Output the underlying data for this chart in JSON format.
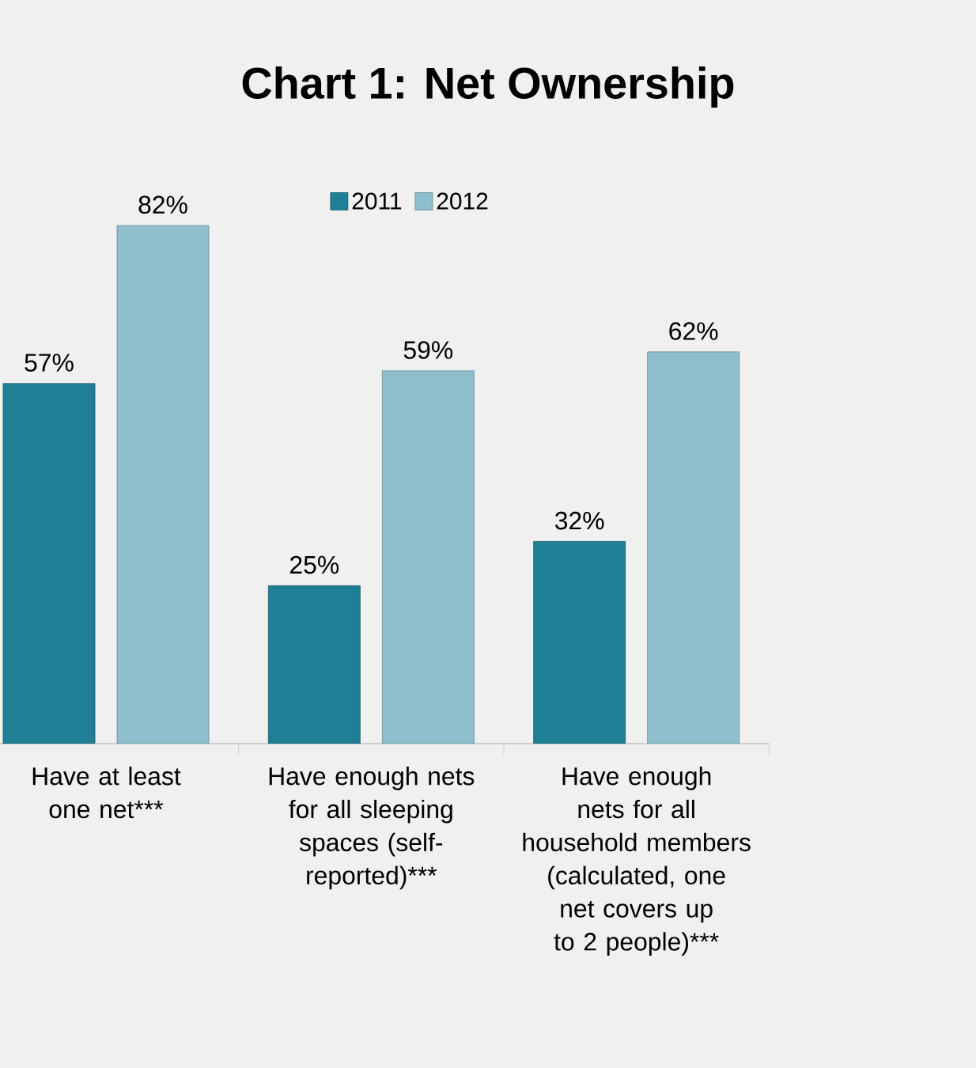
{
  "chart_data": {
    "type": "bar",
    "title": "Chart 1: Net Ownership",
    "categories": [
      "Have at least one net***",
      "Have enough nets for all sleeping spaces (self-reported)***",
      "Have enough nets for all household members (calculated, one net covers up to 2 people)***"
    ],
    "series": [
      {
        "name": "2011",
        "color": "#1f7f95",
        "values": [
          57,
          25,
          32
        ],
        "value_labels": [
          "57%",
          "25%",
          "32%"
        ]
      },
      {
        "name": "2012",
        "color": "#8fbfcc",
        "values": [
          82,
          59,
          62
        ],
        "value_labels": [
          "82%",
          "59%",
          "62%"
        ]
      }
    ],
    "legend": "top"
  }
}
